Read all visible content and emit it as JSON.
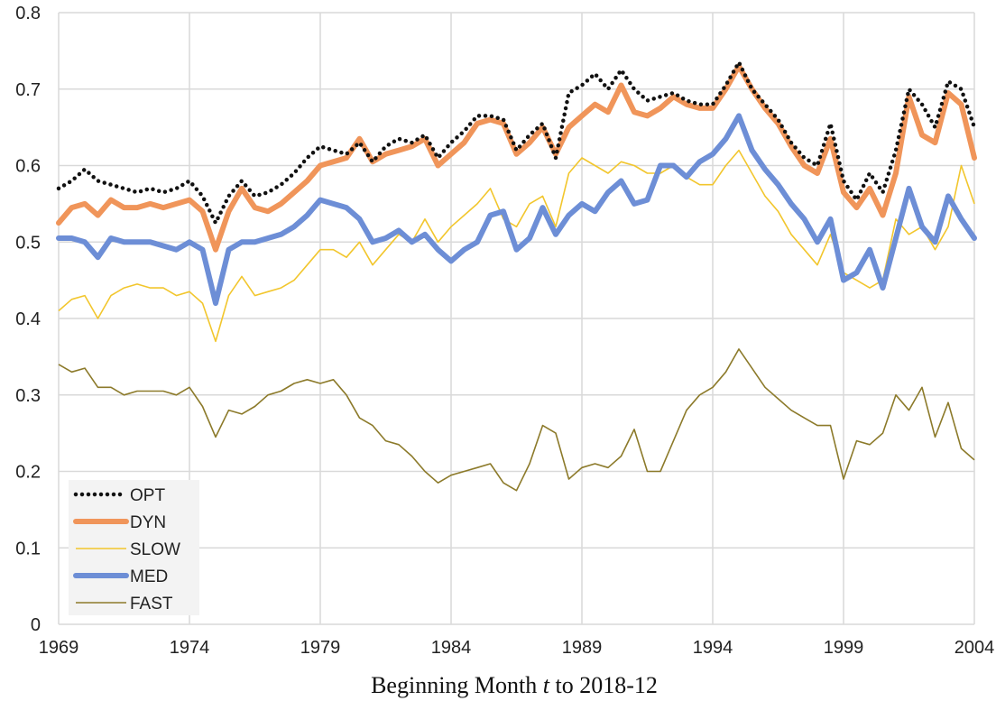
{
  "chart_data": {
    "type": "line",
    "title": "",
    "xlabel": "Beginning Month t to 2018-12",
    "xlabel_parts": [
      "Beginning Month ",
      "t",
      " to 2018-12"
    ],
    "ylabel": "",
    "xlim": [
      1969,
      2004
    ],
    "ylim": [
      0,
      0.8
    ],
    "x_ticks": [
      1969,
      1974,
      1979,
      1984,
      1989,
      1994,
      1999,
      2004
    ],
    "x_tick_labels": [
      "1969",
      "1974",
      "1979",
      "1984",
      "1989",
      "1994",
      "1999",
      "2004"
    ],
    "y_ticks": [
      0,
      0.1,
      0.2,
      0.3,
      0.4,
      0.5,
      0.6,
      0.7,
      0.8
    ],
    "y_tick_labels": [
      "0",
      "0.1",
      "0.2",
      "0.3",
      "0.4",
      "0.5",
      "0.6",
      "0.7",
      "0.8"
    ],
    "grid": true,
    "legend_position": "bottom-left",
    "x": [
      1969.0,
      1969.5,
      1970.0,
      1970.5,
      1971.0,
      1971.5,
      1972.0,
      1972.5,
      1973.0,
      1973.5,
      1974.0,
      1974.5,
      1975.0,
      1975.5,
      1976.0,
      1976.5,
      1977.0,
      1977.5,
      1978.0,
      1978.5,
      1979.0,
      1979.5,
      1980.0,
      1980.5,
      1981.0,
      1981.5,
      1982.0,
      1982.5,
      1983.0,
      1983.5,
      1984.0,
      1984.5,
      1985.0,
      1985.5,
      1986.0,
      1986.5,
      1987.0,
      1987.5,
      1988.0,
      1988.5,
      1989.0,
      1989.5,
      1990.0,
      1990.5,
      1991.0,
      1991.5,
      1992.0,
      1992.5,
      1993.0,
      1993.5,
      1994.0,
      1994.5,
      1995.0,
      1995.5,
      1996.0,
      1996.5,
      1997.0,
      1997.5,
      1998.0,
      1998.5,
      1999.0,
      1999.5,
      2000.0,
      2000.5,
      2001.0,
      2001.5,
      2002.0,
      2002.5,
      2003.0,
      2003.5,
      2004.0
    ],
    "series": [
      {
        "name": "OPT",
        "color": "#111111",
        "style": "dotted",
        "values": [
          0.57,
          0.58,
          0.595,
          0.58,
          0.575,
          0.57,
          0.565,
          0.57,
          0.565,
          0.57,
          0.58,
          0.56,
          0.525,
          0.56,
          0.58,
          0.56,
          0.565,
          0.575,
          0.59,
          0.61,
          0.625,
          0.62,
          0.615,
          0.63,
          0.605,
          0.625,
          0.635,
          0.63,
          0.64,
          0.61,
          0.63,
          0.645,
          0.665,
          0.665,
          0.66,
          0.62,
          0.64,
          0.655,
          0.61,
          0.695,
          0.705,
          0.72,
          0.7,
          0.725,
          0.7,
          0.685,
          0.69,
          0.695,
          0.685,
          0.68,
          0.68,
          0.705,
          0.735,
          0.7,
          0.68,
          0.66,
          0.63,
          0.61,
          0.6,
          0.655,
          0.58,
          0.555,
          0.59,
          0.565,
          0.62,
          0.7,
          0.68,
          0.65,
          0.71,
          0.7,
          0.65
        ]
      },
      {
        "name": "DYN",
        "color": "#F0955A",
        "style": "thick",
        "values": [
          0.525,
          0.545,
          0.55,
          0.535,
          0.555,
          0.545,
          0.545,
          0.55,
          0.545,
          0.55,
          0.555,
          0.54,
          0.49,
          0.54,
          0.57,
          0.545,
          0.54,
          0.55,
          0.565,
          0.58,
          0.6,
          0.605,
          0.61,
          0.635,
          0.605,
          0.615,
          0.62,
          0.625,
          0.635,
          0.6,
          0.615,
          0.63,
          0.655,
          0.66,
          0.655,
          0.615,
          0.63,
          0.65,
          0.615,
          0.65,
          0.665,
          0.68,
          0.67,
          0.705,
          0.67,
          0.665,
          0.675,
          0.69,
          0.68,
          0.675,
          0.675,
          0.7,
          0.73,
          0.7,
          0.675,
          0.655,
          0.625,
          0.6,
          0.59,
          0.635,
          0.565,
          0.545,
          0.57,
          0.535,
          0.59,
          0.69,
          0.64,
          0.63,
          0.695,
          0.68,
          0.61
        ]
      },
      {
        "name": "SLOW",
        "color": "#F2C62D",
        "style": "thin",
        "values": [
          0.41,
          0.425,
          0.43,
          0.4,
          0.43,
          0.44,
          0.445,
          0.44,
          0.44,
          0.43,
          0.435,
          0.42,
          0.37,
          0.43,
          0.455,
          0.43,
          0.435,
          0.44,
          0.45,
          0.47,
          0.49,
          0.49,
          0.48,
          0.5,
          0.47,
          0.49,
          0.51,
          0.5,
          0.53,
          0.5,
          0.52,
          0.535,
          0.55,
          0.57,
          0.53,
          0.52,
          0.55,
          0.56,
          0.52,
          0.59,
          0.61,
          0.6,
          0.59,
          0.605,
          0.6,
          0.59,
          0.59,
          0.6,
          0.585,
          0.575,
          0.575,
          0.6,
          0.62,
          0.59,
          0.56,
          0.54,
          0.51,
          0.49,
          0.47,
          0.51,
          0.46,
          0.45,
          0.44,
          0.45,
          0.53,
          0.51,
          0.52,
          0.49,
          0.52,
          0.6,
          0.55
        ]
      },
      {
        "name": "MED",
        "color": "#6D8ED6",
        "style": "thick",
        "values": [
          0.505,
          0.505,
          0.5,
          0.48,
          0.505,
          0.5,
          0.5,
          0.5,
          0.495,
          0.49,
          0.5,
          0.49,
          0.42,
          0.49,
          0.5,
          0.5,
          0.505,
          0.51,
          0.52,
          0.535,
          0.555,
          0.55,
          0.545,
          0.53,
          0.5,
          0.505,
          0.515,
          0.5,
          0.51,
          0.49,
          0.475,
          0.49,
          0.5,
          0.535,
          0.54,
          0.49,
          0.505,
          0.545,
          0.51,
          0.535,
          0.55,
          0.54,
          0.565,
          0.58,
          0.55,
          0.555,
          0.6,
          0.6,
          0.585,
          0.605,
          0.615,
          0.635,
          0.665,
          0.62,
          0.595,
          0.575,
          0.55,
          0.53,
          0.5,
          0.53,
          0.45,
          0.46,
          0.49,
          0.44,
          0.505,
          0.57,
          0.52,
          0.5,
          0.56,
          0.53,
          0.505
        ]
      },
      {
        "name": "FAST",
        "color": "#8C7A2A",
        "style": "thin",
        "values": [
          0.34,
          0.33,
          0.335,
          0.31,
          0.31,
          0.3,
          0.305,
          0.305,
          0.305,
          0.3,
          0.31,
          0.285,
          0.245,
          0.28,
          0.275,
          0.285,
          0.3,
          0.305,
          0.315,
          0.32,
          0.315,
          0.32,
          0.3,
          0.27,
          0.26,
          0.24,
          0.235,
          0.22,
          0.2,
          0.185,
          0.195,
          0.2,
          0.205,
          0.21,
          0.185,
          0.175,
          0.21,
          0.26,
          0.25,
          0.19,
          0.205,
          0.21,
          0.205,
          0.22,
          0.255,
          0.2,
          0.2,
          0.24,
          0.28,
          0.3,
          0.31,
          0.33,
          0.36,
          0.335,
          0.31,
          0.295,
          0.28,
          0.27,
          0.26,
          0.26,
          0.19,
          0.24,
          0.235,
          0.25,
          0.3,
          0.28,
          0.31,
          0.245,
          0.29,
          0.23,
          0.215
        ]
      }
    ]
  }
}
